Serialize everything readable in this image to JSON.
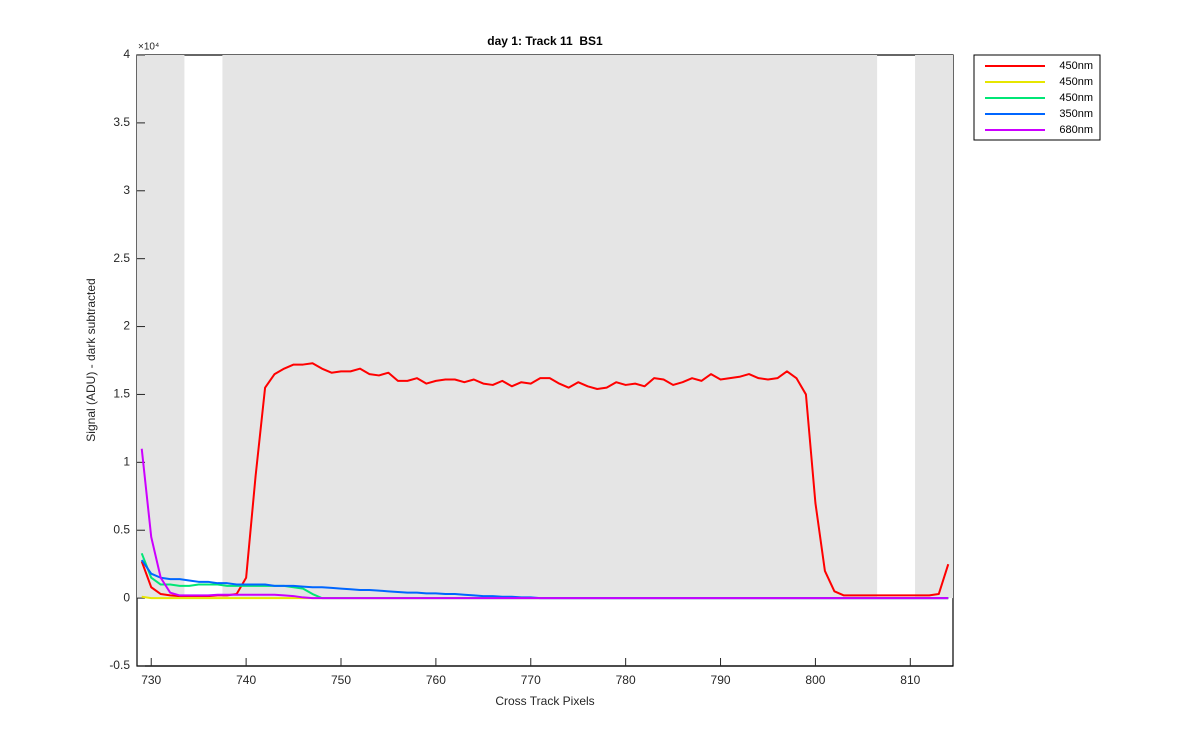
{
  "chart_data": {
    "type": "line",
    "title": "day 1: Track 11  BS1",
    "xlabel": "Cross Track Pixels",
    "ylabel": "Signal (ADU) - dark subtracted",
    "y_multiplier": "×10⁴",
    "xlim": [
      728.5,
      814.5
    ],
    "ylim": [
      -5000,
      40000
    ],
    "xticks": [
      730,
      740,
      750,
      760,
      770,
      780,
      790,
      800,
      810
    ],
    "yticks": [
      {
        "value": -5000,
        "label": "-0.5"
      },
      {
        "value": 0,
        "label": "0"
      },
      {
        "value": 5000,
        "label": "0.5"
      },
      {
        "value": 10000,
        "label": "1"
      },
      {
        "value": 15000,
        "label": "1.5"
      },
      {
        "value": 20000,
        "label": "2"
      },
      {
        "value": 25000,
        "label": "2.5"
      },
      {
        "value": 30000,
        "label": "3"
      },
      {
        "value": 35000,
        "label": "3.5"
      },
      {
        "value": 40000,
        "label": "4"
      }
    ],
    "grid": false,
    "legend": "outside-top-right",
    "shaded_regions": [
      {
        "x": [
          728.5,
          733.5
        ],
        "y": [
          0,
          40000
        ]
      },
      {
        "x": [
          737.5,
          806.5
        ],
        "y": [
          0,
          40000
        ]
      },
      {
        "x": [
          810.5,
          814.5
        ],
        "y": [
          0,
          40000
        ]
      }
    ],
    "shade_color": "#e5e5e5",
    "x": [
      729,
      730,
      731,
      732,
      733,
      734,
      735,
      736,
      737,
      738,
      739,
      740,
      741,
      742,
      743,
      744,
      745,
      746,
      747,
      748,
      749,
      750,
      751,
      752,
      753,
      754,
      755,
      756,
      757,
      758,
      759,
      760,
      761,
      762,
      763,
      764,
      765,
      766,
      767,
      768,
      769,
      770,
      771,
      772,
      773,
      774,
      775,
      776,
      777,
      778,
      779,
      780,
      781,
      782,
      783,
      784,
      785,
      786,
      787,
      788,
      789,
      790,
      791,
      792,
      793,
      794,
      795,
      796,
      797,
      798,
      799,
      800,
      801,
      802,
      803,
      804,
      805,
      806,
      807,
      808,
      809,
      810,
      811,
      812,
      813,
      814
    ],
    "series": [
      {
        "name": "450nm",
        "color": "#ff0000",
        "values": [
          2700,
          800,
          300,
          200,
          150,
          150,
          150,
          150,
          200,
          200,
          300,
          1500,
          9000,
          15500,
          16500,
          16900,
          17200,
          17200,
          17300,
          16900,
          16600,
          16700,
          16700,
          16900,
          16500,
          16400,
          16600,
          16000,
          16000,
          16200,
          15800,
          16000,
          16100,
          16100,
          15900,
          16100,
          15800,
          15700,
          16000,
          15600,
          15900,
          15800,
          16200,
          16200,
          15800,
          15500,
          15900,
          15600,
          15400,
          15500,
          15900,
          15700,
          15800,
          15600,
          16200,
          16100,
          15700,
          15900,
          16200,
          16000,
          16500,
          16100,
          16200,
          16300,
          16500,
          16200,
          16100,
          16200,
          16700,
          16200,
          15000,
          7000,
          2000,
          500,
          200,
          200,
          200,
          200,
          200,
          200,
          200,
          200,
          200,
          200,
          300,
          2500
        ]
      },
      {
        "name": "450nm",
        "color": "#e6e600",
        "values": [
          100,
          0,
          0,
          0,
          0,
          0,
          0,
          0,
          0,
          0,
          0,
          0,
          0,
          0,
          0,
          0,
          0,
          0,
          0,
          0,
          0,
          0,
          0,
          0,
          0,
          0,
          0,
          0,
          0,
          0,
          0,
          0,
          0,
          0,
          0,
          0,
          0,
          0,
          0,
          0,
          0,
          0,
          0,
          0,
          0,
          0,
          0,
          0,
          0,
          0,
          0,
          0,
          0,
          0,
          0,
          0,
          0,
          0,
          0,
          0,
          0,
          0,
          0,
          0,
          0,
          0,
          0,
          0,
          0,
          0,
          0,
          0,
          0,
          0,
          0,
          0,
          0,
          0,
          0,
          0,
          0,
          0,
          0,
          0,
          0,
          0
        ]
      },
      {
        "name": "450nm",
        "color": "#00e676",
        "values": [
          3300,
          1500,
          1000,
          1000,
          900,
          900,
          1000,
          1000,
          1000,
          900,
          900,
          900,
          900,
          900,
          900,
          900,
          800,
          700,
          300,
          0,
          0,
          0,
          0,
          0,
          0,
          0,
          0,
          0,
          0,
          0,
          0,
          0,
          0,
          0,
          0,
          0,
          0,
          0,
          0,
          0,
          0,
          0,
          0,
          0,
          0,
          0,
          0,
          0,
          0,
          0,
          0,
          0,
          0,
          0,
          0,
          0,
          0,
          0,
          0,
          0,
          0,
          0,
          0,
          0,
          0,
          0,
          0,
          0,
          0,
          0,
          0,
          0,
          0,
          0,
          0,
          0,
          0,
          0,
          0,
          0,
          0,
          0,
          0,
          0,
          0,
          0
        ]
      },
      {
        "name": "350nm",
        "color": "#0066ff",
        "values": [
          2800,
          1800,
          1500,
          1400,
          1400,
          1300,
          1200,
          1200,
          1100,
          1100,
          1000,
          1000,
          1000,
          1000,
          900,
          900,
          900,
          850,
          800,
          800,
          750,
          700,
          650,
          600,
          600,
          550,
          500,
          450,
          400,
          400,
          350,
          350,
          300,
          300,
          250,
          200,
          150,
          150,
          100,
          100,
          50,
          50,
          0,
          0,
          0,
          0,
          0,
          0,
          0,
          0,
          0,
          0,
          0,
          0,
          0,
          0,
          0,
          0,
          0,
          0,
          0,
          0,
          0,
          0,
          0,
          0,
          0,
          0,
          0,
          0,
          0,
          0,
          0,
          0,
          0,
          0,
          0,
          0,
          0,
          0,
          0,
          0,
          0,
          0,
          0,
          0
        ]
      },
      {
        "name": "680nm",
        "color": "#cc00ff",
        "values": [
          11000,
          4500,
          1500,
          400,
          200,
          200,
          200,
          200,
          250,
          250,
          250,
          250,
          250,
          250,
          250,
          200,
          150,
          50,
          0,
          0,
          0,
          0,
          0,
          0,
          0,
          0,
          0,
          0,
          0,
          0,
          0,
          0,
          0,
          0,
          0,
          0,
          0,
          0,
          0,
          0,
          0,
          0,
          0,
          0,
          0,
          0,
          0,
          0,
          0,
          0,
          0,
          0,
          0,
          0,
          0,
          0,
          0,
          0,
          0,
          0,
          0,
          0,
          0,
          0,
          0,
          0,
          0,
          0,
          0,
          0,
          0,
          0,
          0,
          0,
          0,
          0,
          0,
          0,
          0,
          0,
          0,
          0,
          0,
          0,
          0,
          0
        ]
      }
    ]
  }
}
